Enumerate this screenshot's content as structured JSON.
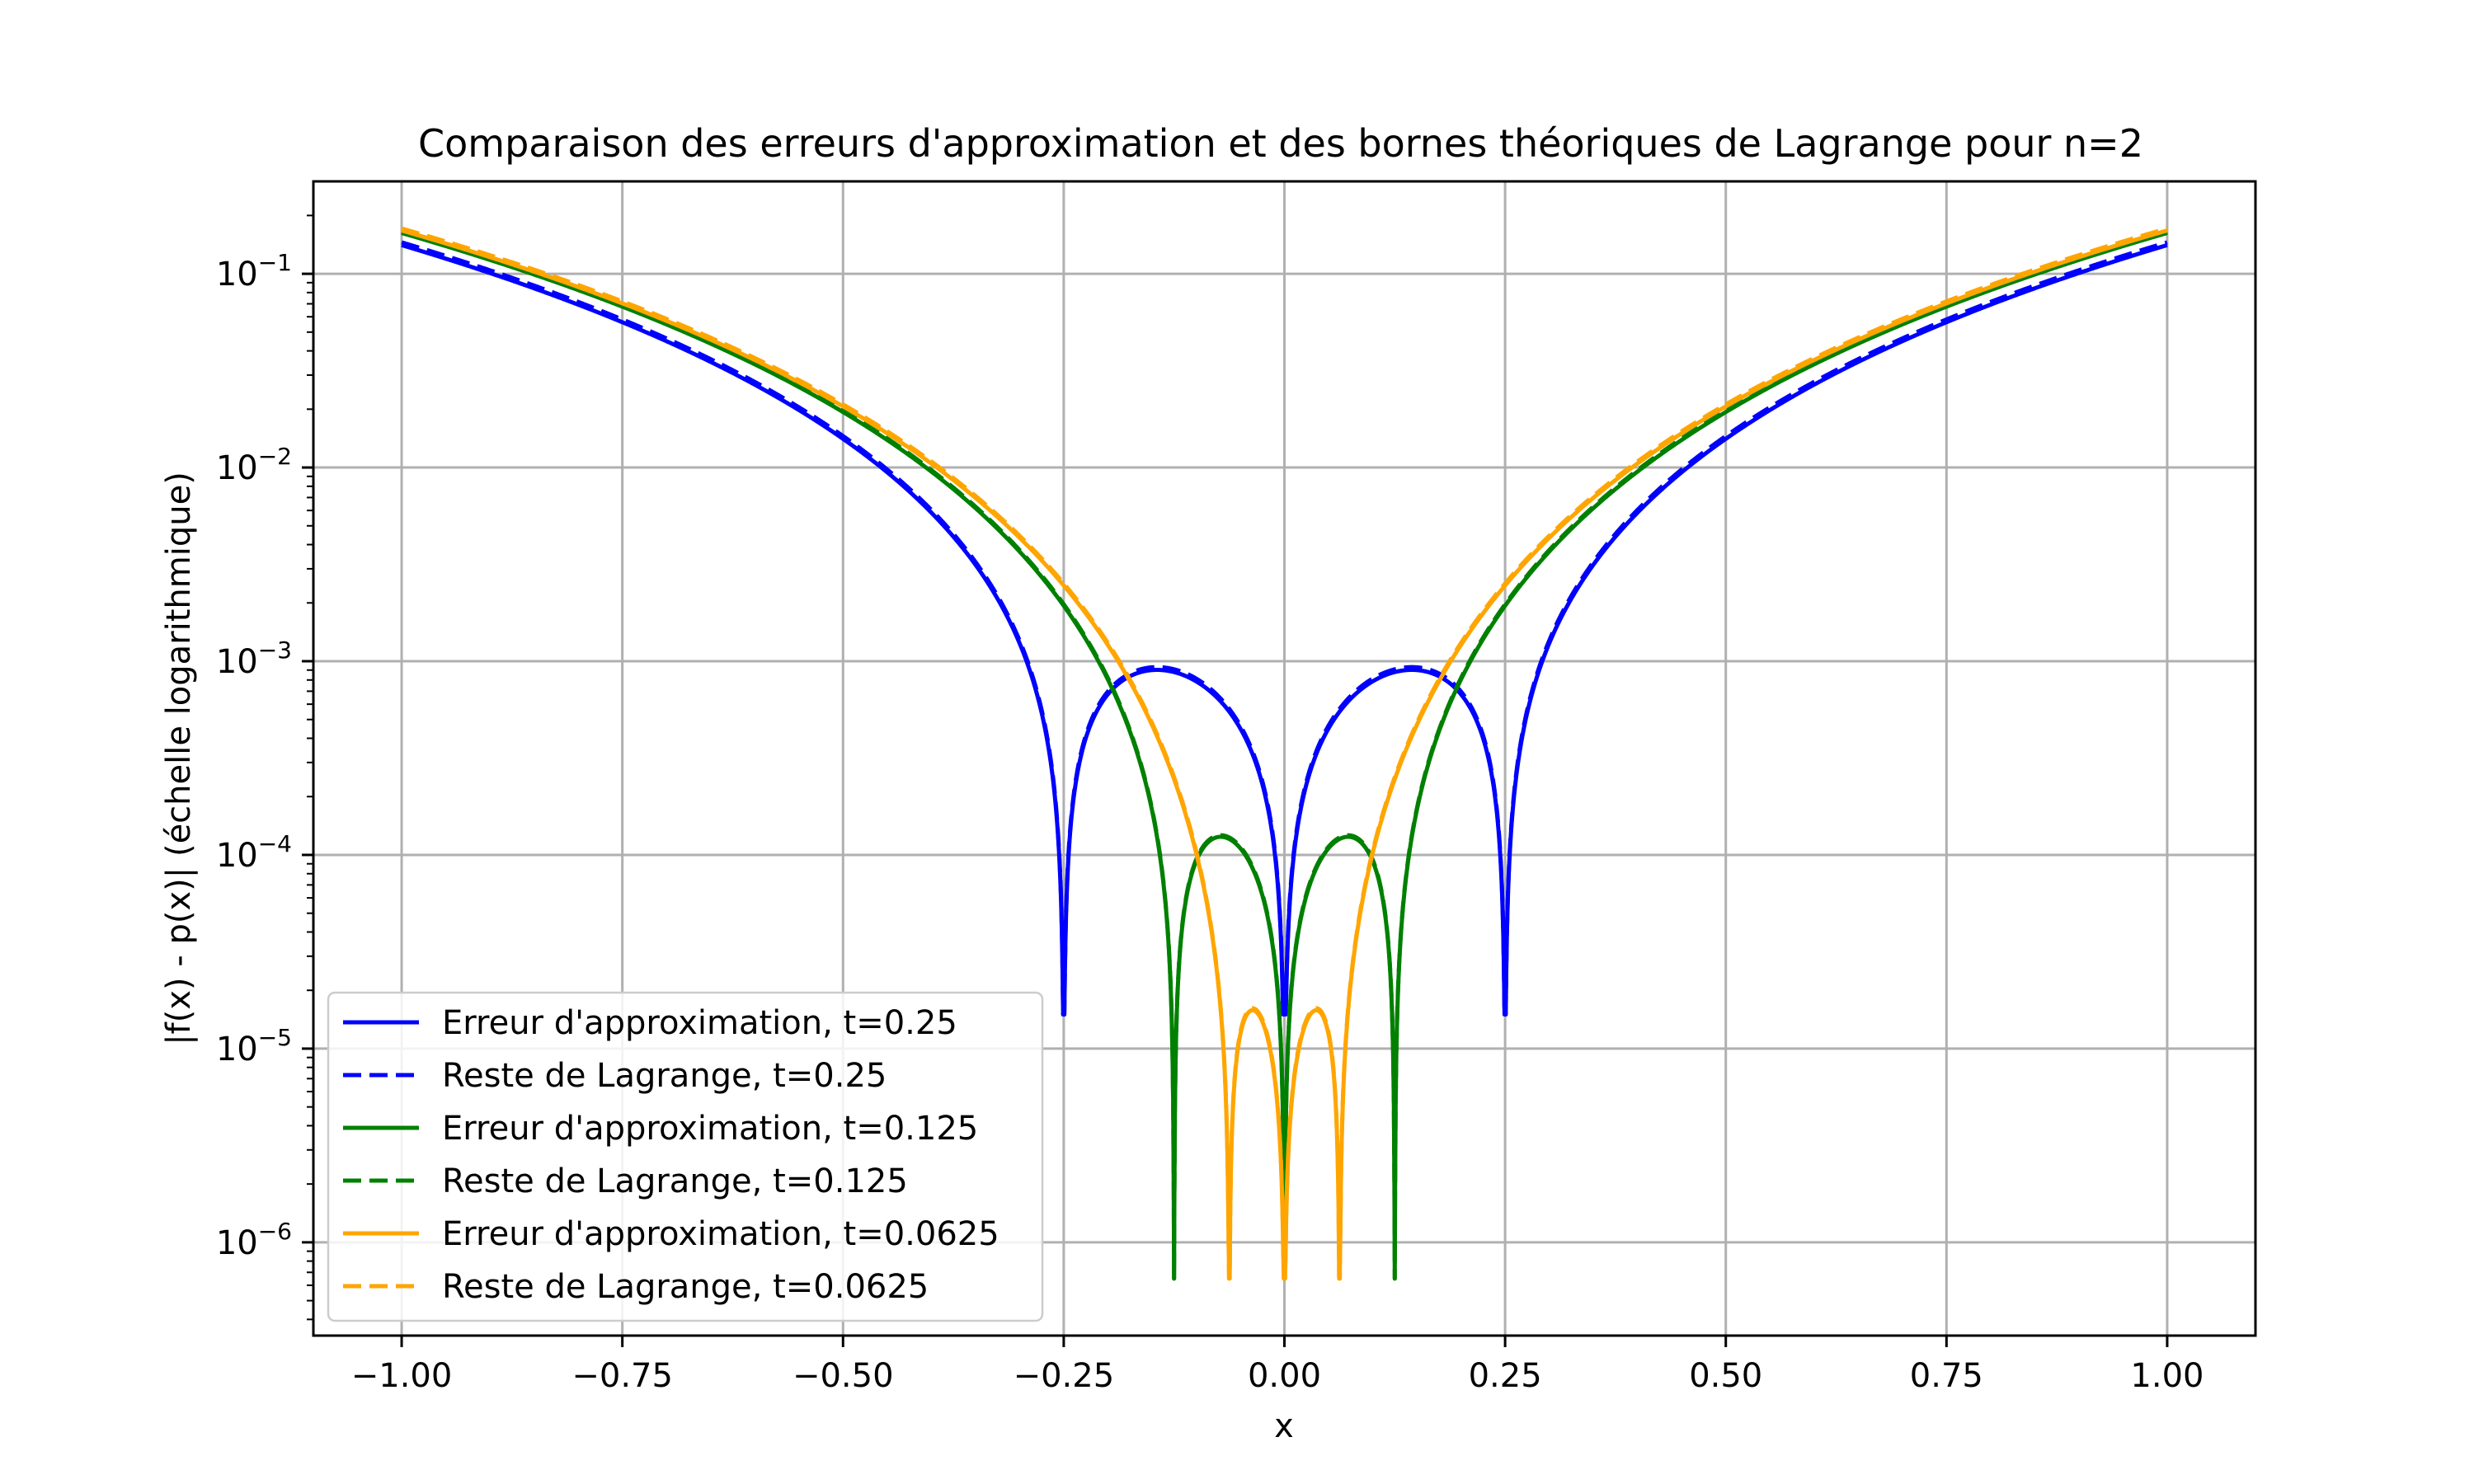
{
  "chart_data": {
    "type": "line",
    "title": "Comparaison des erreurs d'approximation et des bornes théoriques de Lagrange pour n=2",
    "xlabel": "x",
    "ylabel": "|f(x) - p(x)| (échelle logarithmique)",
    "xlim": [
      -1.1,
      1.1
    ],
    "ylim": [
      3.3e-07,
      0.3
    ],
    "yscale": "log",
    "grid": true,
    "legend_position": "lower-left",
    "x_ticks": [
      {
        "value": -1.0,
        "label": "−1.00"
      },
      {
        "value": -0.75,
        "label": "−0.75"
      },
      {
        "value": -0.5,
        "label": "−0.50"
      },
      {
        "value": -0.25,
        "label": "−0.25"
      },
      {
        "value": 0.0,
        "label": "0.00"
      },
      {
        "value": 0.25,
        "label": "0.25"
      },
      {
        "value": 0.5,
        "label": "0.50"
      },
      {
        "value": 0.75,
        "label": "0.75"
      },
      {
        "value": 1.0,
        "label": "1.00"
      }
    ],
    "y_ticks": [
      {
        "value": 1e-06,
        "base": "10",
        "exp": "−6"
      },
      {
        "value": 1e-05,
        "base": "10",
        "exp": "−5"
      },
      {
        "value": 0.0001,
        "base": "10",
        "exp": "−4"
      },
      {
        "value": 0.001,
        "base": "10",
        "exp": "−3"
      },
      {
        "value": 0.01,
        "base": "10",
        "exp": "−2"
      },
      {
        "value": 0.1,
        "base": "10",
        "exp": "−1"
      }
    ],
    "series": [
      {
        "name": "Erreur d'approximation, t=0.25",
        "color": "#0000ff",
        "style": "solid",
        "nodes": [
          -0.25,
          0.0,
          0.25
        ],
        "scale": 0.15,
        "floor": 1.5e-05,
        "points_x": [
          -1.0,
          -0.75,
          -0.5,
          -0.3,
          -0.25,
          -0.144,
          0.0,
          0.144,
          0.25,
          0.3,
          0.5,
          0.75,
          1.0
        ],
        "points_y": [
          0.148,
          0.0616,
          0.0174,
          0.00213,
          1.5e-05,
          0.00101,
          1e-05,
          0.00101,
          1.5e-05,
          0.00213,
          0.0174,
          0.0616,
          0.148
        ]
      },
      {
        "name": "Reste de Lagrange, t=0.25",
        "color": "#0000ff",
        "style": "dashed",
        "nodes": [
          -0.25,
          0.0,
          0.25
        ],
        "scale": 0.155,
        "floor": 1.5e-05,
        "points_x": [
          -1.0,
          -0.5,
          0.5,
          1.0
        ],
        "points_y": [
          0.152,
          0.0178,
          0.0178,
          0.152
        ]
      },
      {
        "name": "Erreur d'approximation, t=0.125",
        "color": "#008000",
        "style": "solid",
        "nodes": [
          -0.125,
          0.0,
          0.125
        ],
        "scale": 0.165,
        "floor": 6.5e-07,
        "points_x": [
          -1.0,
          -0.5,
          -0.125,
          -0.072,
          0.0,
          0.072,
          0.125,
          0.5,
          1.0
        ],
        "points_y": [
          0.162,
          0.0193,
          6.5e-07,
          0.000124,
          1e-05,
          0.000124,
          6.5e-07,
          0.0193,
          0.162
        ]
      },
      {
        "name": "Reste de Lagrange, t=0.125",
        "color": "#008000",
        "style": "dashed",
        "nodes": [
          -0.125,
          0.0,
          0.125
        ],
        "scale": 0.168,
        "floor": 6.5e-07,
        "points_x": [
          -1.0,
          1.0
        ],
        "points_y": [
          0.165,
          0.165
        ]
      },
      {
        "name": "Erreur d'approximation, t=0.0625",
        "color": "#ffa500",
        "style": "solid",
        "nodes": [
          -0.0625,
          0.0,
          0.0625
        ],
        "scale": 0.168,
        "floor": 6.5e-07,
        "points_x": [
          -1.0,
          -0.5,
          -0.0625,
          -0.036,
          0.0,
          0.036,
          0.0625,
          0.5,
          1.0
        ],
        "points_y": [
          0.166,
          0.0206,
          7.5e-07,
          1.58e-05,
          6.5e-07,
          1.58e-05,
          7.5e-07,
          0.0206,
          0.166
        ]
      },
      {
        "name": "Reste de Lagrange, t=0.0625",
        "color": "#ffa500",
        "style": "dashed",
        "nodes": [
          -0.0625,
          0.0,
          0.0625
        ],
        "scale": 0.172,
        "floor": 6.5e-07,
        "points_x": [
          -1.0,
          1.0
        ],
        "points_y": [
          0.17,
          0.17
        ]
      }
    ]
  }
}
